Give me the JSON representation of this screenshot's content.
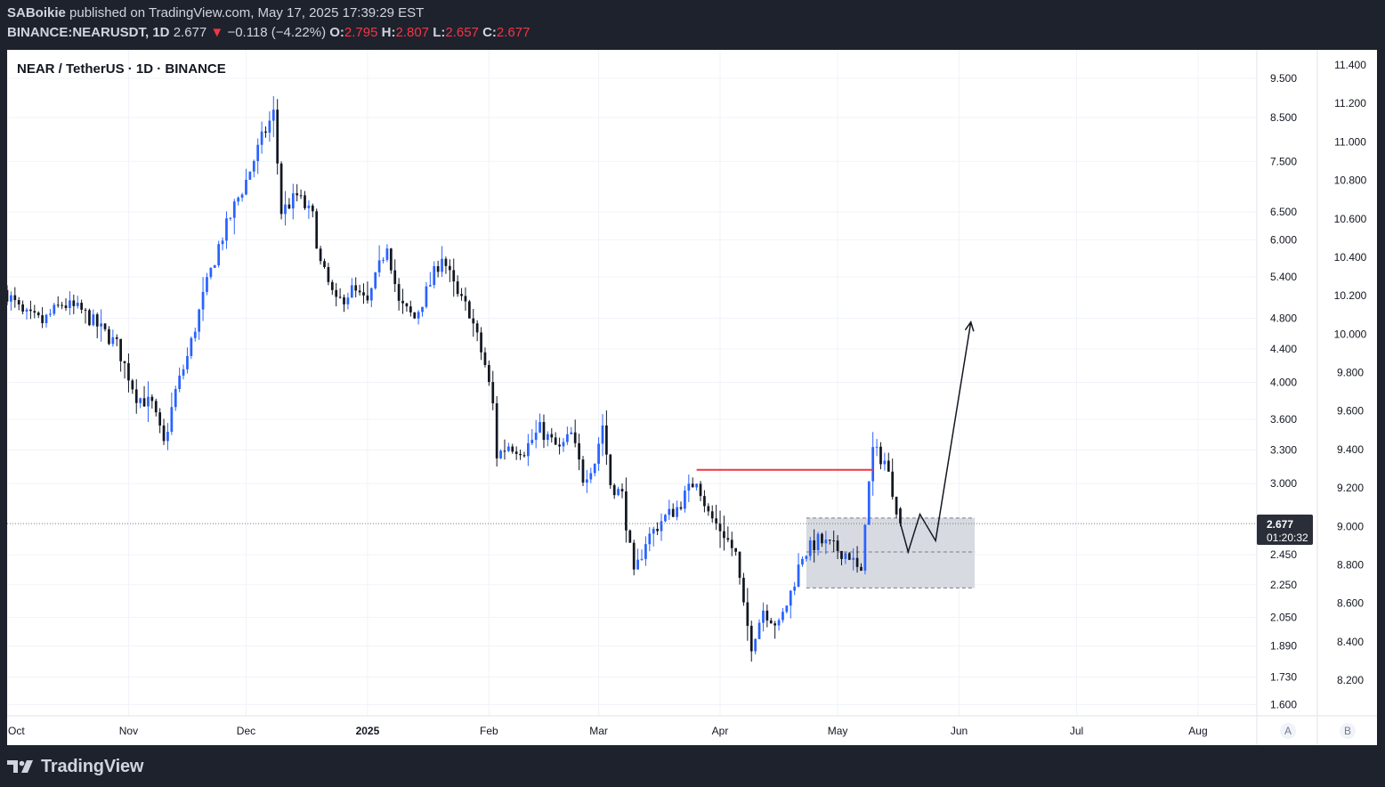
{
  "header": {
    "author": "SABoikie",
    "published_text": "published on TradingView.com, May 17, 2025 17:39:29 EST",
    "symbol_line": "BINANCE:NEARUSDT, 1D",
    "last_price": "2.677",
    "change_arrow": "▼",
    "change": "−0.118 (−4.22%)",
    "o_label": "O:",
    "o_value": "2.795",
    "h_label": "H:",
    "h_value": "2.807",
    "l_label": "L:",
    "l_value": "2.657",
    "c_label": "C:",
    "c_value": "2.677"
  },
  "chart_title": "NEAR / TetherUS · 1D · BINANCE",
  "price_badge": {
    "price": "2.677",
    "countdown": "01:20:32"
  },
  "axis_buttons": {
    "auto": "A",
    "log": "B"
  },
  "footer": {
    "brand": "TradingView",
    "logo_icon": "tradingview-logo-icon"
  },
  "colors": {
    "up": "#2962ff",
    "down": "#131722",
    "resistance_line": "#f23645",
    "zone_fill": "#d1d4dc",
    "background_dark": "#1e222d",
    "chart_bg": "#ffffff",
    "badge_bg": "#2a2e39"
  },
  "chart_data": {
    "type": "candlestick",
    "scale": "log",
    "grid": true,
    "x_tick_labels": [
      "Oct",
      "Nov",
      "Dec",
      "2025",
      "Feb",
      "Mar",
      "Apr",
      "May",
      "Jun",
      "Jul",
      "Aug"
    ],
    "x_tick_dates": [
      "2024-10-01",
      "2024-11-01",
      "2024-12-01",
      "2025-01-01",
      "2025-02-01",
      "2025-03-01",
      "2025-04-01",
      "2025-05-01",
      "2025-06-01",
      "2025-07-01",
      "2025-08-01"
    ],
    "y_axis_left_ticks": [
      9.5,
      8.5,
      7.5,
      6.5,
      6.0,
      5.4,
      4.8,
      4.4,
      4.0,
      3.6,
      3.3,
      3.0,
      2.45,
      2.25,
      2.05,
      1.89,
      1.73,
      1.6
    ],
    "y_axis_left_labels": [
      "9.500",
      "8.500",
      "7.500",
      "6.500",
      "6.000",
      "5.400",
      "4.800",
      "4.400",
      "4.000",
      "3.600",
      "3.300",
      "3.000",
      "2.450",
      "2.250",
      "2.050",
      "1.890",
      "1.730",
      "1.600"
    ],
    "y_axis_right_labels": [
      "11.400",
      "11.200",
      "11.000",
      "10.800",
      "10.600",
      "10.400",
      "10.200",
      "10.000",
      "9.800",
      "9.600",
      "9.400",
      "9.200",
      "9.000",
      "8.800",
      "8.600",
      "8.400",
      "8.200"
    ],
    "y_range": [
      1.55,
      10.3
    ],
    "x_range": [
      "2024-10-01",
      "2025-08-16"
    ],
    "last_price": 2.677,
    "ohlc_last": {
      "open": 2.795,
      "high": 2.807,
      "low": 2.657,
      "close": 2.677
    },
    "close_anchors": [
      [
        "2024-10-01",
        5.15
      ],
      [
        "2024-10-05",
        4.85
      ],
      [
        "2024-10-10",
        4.75
      ],
      [
        "2024-10-15",
        5.0
      ],
      [
        "2024-10-20",
        4.9
      ],
      [
        "2024-10-25",
        4.65
      ],
      [
        "2024-10-29",
        4.45
      ],
      [
        "2024-11-03",
        3.85
      ],
      [
        "2024-11-07",
        3.75
      ],
      [
        "2024-11-10",
        3.35
      ],
      [
        "2024-11-13",
        3.9
      ],
      [
        "2024-11-16",
        4.3
      ],
      [
        "2024-11-20",
        5.1
      ],
      [
        "2024-11-24",
        5.9
      ],
      [
        "2024-11-28",
        6.6
      ],
      [
        "2024-12-01",
        7.1
      ],
      [
        "2024-12-05",
        8.0
      ],
      [
        "2024-12-08",
        8.6
      ],
      [
        "2024-12-10",
        6.5
      ],
      [
        "2024-12-14",
        6.8
      ],
      [
        "2024-12-18",
        6.4
      ],
      [
        "2024-12-20",
        5.6
      ],
      [
        "2024-12-24",
        5.0
      ],
      [
        "2024-12-28",
        5.2
      ],
      [
        "2025-01-01",
        5.0
      ],
      [
        "2025-01-06",
        5.95
      ],
      [
        "2025-01-09",
        5.0
      ],
      [
        "2025-01-13",
        4.8
      ],
      [
        "2025-01-17",
        5.3
      ],
      [
        "2025-01-20",
        5.75
      ],
      [
        "2025-01-24",
        5.1
      ],
      [
        "2025-01-27",
        4.9
      ],
      [
        "2025-01-31",
        4.2
      ],
      [
        "2025-02-02",
        3.75
      ],
      [
        "2025-02-03",
        3.25
      ],
      [
        "2025-02-06",
        3.35
      ],
      [
        "2025-02-10",
        3.3
      ],
      [
        "2025-02-14",
        3.5
      ],
      [
        "2025-02-19",
        3.3
      ],
      [
        "2025-02-22",
        3.45
      ],
      [
        "2025-02-25",
        3.05
      ],
      [
        "2025-02-28",
        3.2
      ],
      [
        "2025-03-02",
        3.55
      ],
      [
        "2025-03-04",
        3.0
      ],
      [
        "2025-03-07",
        2.9
      ],
      [
        "2025-03-10",
        2.3
      ],
      [
        "2025-03-13",
        2.55
      ],
      [
        "2025-03-17",
        2.7
      ],
      [
        "2025-03-21",
        2.8
      ],
      [
        "2025-03-26",
        3.05
      ],
      [
        "2025-03-29",
        2.75
      ],
      [
        "2025-04-02",
        2.6
      ],
      [
        "2025-04-05",
        2.45
      ],
      [
        "2025-04-07",
        2.1
      ],
      [
        "2025-04-09",
        1.9
      ],
      [
        "2025-04-12",
        2.1
      ],
      [
        "2025-04-16",
        2.0
      ],
      [
        "2025-04-19",
        2.2
      ],
      [
        "2025-04-22",
        2.45
      ],
      [
        "2025-04-26",
        2.55
      ],
      [
        "2025-04-30",
        2.5
      ],
      [
        "2025-05-04",
        2.45
      ],
      [
        "2025-05-07",
        2.3
      ],
      [
        "2025-05-08",
        2.72
      ],
      [
        "2025-05-10",
        3.3
      ],
      [
        "2025-05-13",
        3.2
      ],
      [
        "2025-05-15",
        2.95
      ],
      [
        "2025-05-17",
        2.677
      ]
    ],
    "annotations": [
      {
        "type": "horizontal_line",
        "color": "#f23645",
        "price": 3.12,
        "from": "2025-03-26",
        "to": "2025-05-10"
      },
      {
        "type": "rectangle_zone",
        "price_top": 2.72,
        "price_bottom": 2.23,
        "price_mid": 2.47,
        "from": "2025-04-23",
        "to": "2025-06-05"
      },
      {
        "type": "projection_path",
        "points": [
          [
            "2025-05-17",
            2.68
          ],
          [
            "2025-05-19",
            2.47
          ],
          [
            "2025-05-22",
            2.75
          ],
          [
            "2025-05-26",
            2.55
          ],
          [
            "2025-06-04",
            4.75
          ]
        ],
        "arrow": true
      }
    ]
  }
}
